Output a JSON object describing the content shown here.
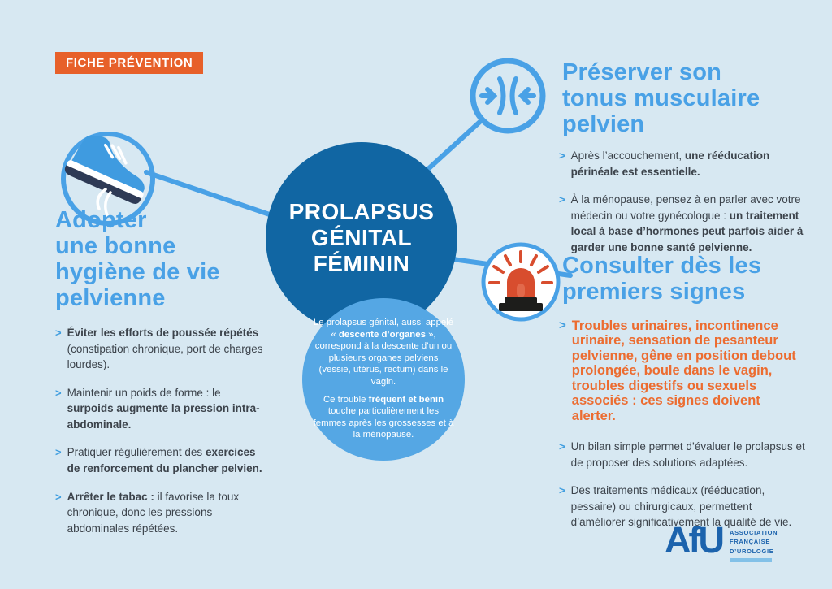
{
  "ui": {
    "chevron": ">"
  },
  "colors": {
    "background": "#d7e8f2",
    "heading_blue": "#49a1e6",
    "dark_circle_blue": "#1166a3",
    "light_circle_blue": "#55a7e4",
    "connector_blue": "#49a1e6",
    "badge_orange": "#e7602a",
    "alert_orange": "#ec6c30",
    "body_text": "#3c434b",
    "afu_blue": "#1c63ad",
    "siren_red": "#d84d2e"
  },
  "badge": {
    "label": "FICHE PRÉVENTION"
  },
  "center": {
    "title": "PROLAPSUS\nGÉNITAL\nFÉMININ",
    "description": [
      {
        "segments": [
          {
            "t": "Le prolapsus génital, aussi appelé « ",
            "b": false
          },
          {
            "t": "descente d’organes",
            "b": true
          },
          {
            "t": " », correspond à la descente d’un ou plusieurs organes pelviens (vessie, utérus, rectum) dans le vagin.",
            "b": false
          }
        ]
      },
      {
        "segments": [
          {
            "t": "Ce trouble ",
            "b": false
          },
          {
            "t": "fréquent et bénin",
            "b": true
          },
          {
            "t": " touche particulièrement les femmes après les grossesses et à la ménopause.",
            "b": false
          }
        ]
      }
    ]
  },
  "left_section": {
    "icon": "sneaker-icon",
    "title": "Adopter\nune bonne\nhygiène de vie\npelvienne",
    "bullets": [
      {
        "segments": [
          {
            "t": "Éviter les efforts de poussée répétés",
            "b": true
          },
          {
            "t": " (constipation chronique, port de charges lourdes).",
            "b": false
          }
        ]
      },
      {
        "segments": [
          {
            "t": "Maintenir un poids de forme : le ",
            "b": false
          },
          {
            "t": "surpoids augmente la pression intra-abdominale.",
            "b": true
          }
        ]
      },
      {
        "segments": [
          {
            "t": "Pratiquer régulièrement des ",
            "b": false
          },
          {
            "t": "exercices de renforcement du plancher pelvien.",
            "b": true
          }
        ]
      },
      {
        "segments": [
          {
            "t": "Arrêter le tabac :",
            "b": true
          },
          {
            "t": " il favorise la toux chronique, donc les pressions abdominales répétées.",
            "b": false
          }
        ]
      }
    ]
  },
  "top_right_section": {
    "icon": "pelvic-contraction-icon",
    "title": "Préserver son\ntonus musculaire\npelvien",
    "bullets": [
      {
        "segments": [
          {
            "t": "Après l’accouchement, ",
            "b": false
          },
          {
            "t": "une rééducation périnéale est essentielle.",
            "b": true
          }
        ]
      },
      {
        "segments": [
          {
            "t": "À la ménopause, pensez à en parler avec votre médecin ou votre gynécologue : ",
            "b": false
          },
          {
            "t": "un traitement local à base d’hormones peut parfois aider à garder une bonne santé pelvienne.",
            "b": true
          }
        ]
      }
    ]
  },
  "bottom_right_section": {
    "icon": "siren-icon",
    "title": "Consulter dès les\npremiers signes",
    "alert_bullet": {
      "segments": [
        {
          "t": "Troubles urinaires, incontinence urinaire, sensation de pesanteur pelvienne, gêne en position debout prolongée, boule dans le vagin, troubles digestifs ou sexuels associés : ces signes doivent alerter.",
          "b": true
        }
      ]
    },
    "bullets": [
      {
        "segments": [
          {
            "t": "Un bilan simple permet d’évaluer le prolapsus et de proposer des solutions adaptées.",
            "b": false
          }
        ]
      },
      {
        "segments": [
          {
            "t": "Des traitements médicaux (rééducation, pessaire) ou chirurgicaux, permettent d’améliorer significativement la qualité de vie.",
            "b": false
          }
        ]
      }
    ]
  },
  "logo": {
    "monogram": "AfU",
    "org_lines": "ASSOCIATION\nFRANÇAISE\nD’UROLOGIE"
  }
}
